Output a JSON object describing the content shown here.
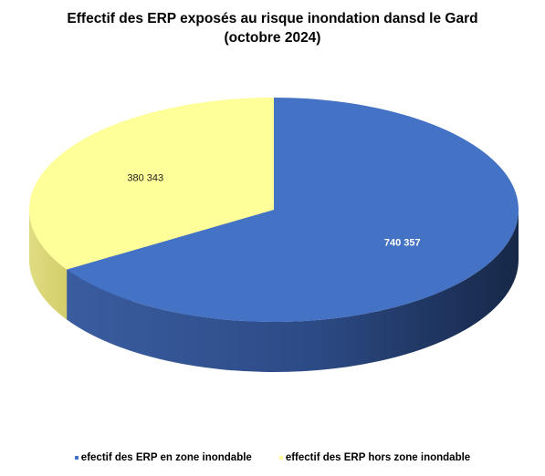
{
  "chart_data": {
    "type": "pie",
    "title": "Effectif des ERP exposés au risque inondation dansd le Gard",
    "subtitle": "(octobre 2024)",
    "slices": [
      {
        "label": "efectif des ERP en zone inondable",
        "value": 740357,
        "value_label": "740 357",
        "color": "#4472C4"
      },
      {
        "label": "effectif des ERP hors zone inondable",
        "value": 380343,
        "value_label": "380 343",
        "color": "#FFFF99"
      }
    ],
    "legend_position": "bottom",
    "style": "3d"
  }
}
